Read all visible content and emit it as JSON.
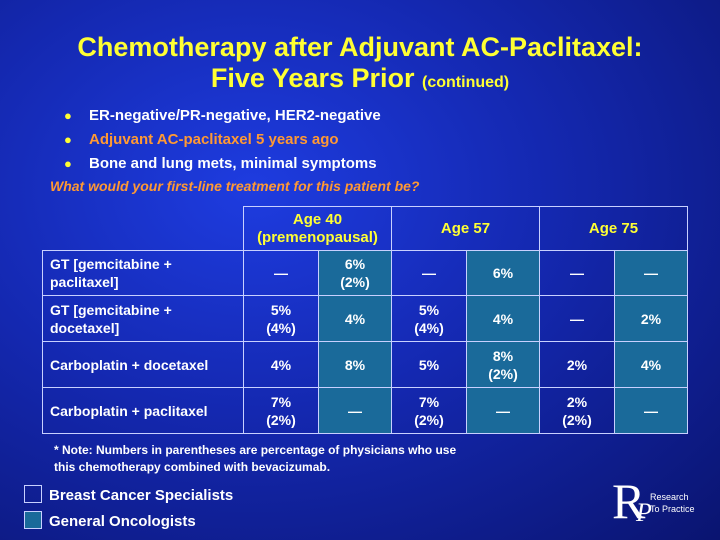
{
  "title": {
    "line1": "Chemotherapy after Adjuvant AC-Paclitaxel:",
    "line2": "Five Years Prior",
    "suffix": "(continued)"
  },
  "bullets": [
    {
      "text": "ER-negative/PR-negative, HER2-negative",
      "highlight": false
    },
    {
      "text": "Adjuvant AC-paclitaxel 5 years ago",
      "highlight": true
    },
    {
      "text": "Bone and lung mets, minimal symptoms",
      "highlight": false
    }
  ],
  "bullet_symbol": "●",
  "question": "What would your first-line treatment for this patient be?",
  "table": {
    "headers": [
      {
        "line1": "Age 40",
        "line2": "(premenopausal)"
      },
      {
        "line1": "Age 57",
        "line2": ""
      },
      {
        "line1": "Age 75",
        "line2": ""
      }
    ],
    "rows": [
      {
        "label_l1": "GT [gemcitabine +",
        "label_l2": "paclitaxel]",
        "cells": [
          [
            "—",
            ""
          ],
          [
            "6%",
            "(2%)"
          ],
          [
            "—",
            ""
          ],
          [
            "6%",
            ""
          ],
          [
            "—",
            ""
          ],
          [
            "—",
            ""
          ]
        ]
      },
      {
        "label_l1": "GT [gemcitabine +",
        "label_l2": "docetaxel]",
        "cells": [
          [
            "5%",
            "(4%)"
          ],
          [
            "4%",
            ""
          ],
          [
            "5%",
            "(4%)"
          ],
          [
            "4%",
            ""
          ],
          [
            "—",
            ""
          ],
          [
            "2%",
            ""
          ]
        ]
      },
      {
        "label_l1": "Carboplatin + docetaxel",
        "label_l2": "",
        "cells": [
          [
            "4%",
            ""
          ],
          [
            "8%",
            ""
          ],
          [
            "5%",
            ""
          ],
          [
            "8%",
            "(2%)"
          ],
          [
            "2%",
            ""
          ],
          [
            "4%",
            ""
          ]
        ]
      },
      {
        "label_l1": "Carboplatin + paclitaxel",
        "label_l2": "",
        "cells": [
          [
            "7%",
            "(2%)"
          ],
          [
            "—",
            ""
          ],
          [
            "7%",
            "(2%)"
          ],
          [
            "—",
            ""
          ],
          [
            "2%",
            "(2%)"
          ],
          [
            "—",
            ""
          ]
        ]
      }
    ]
  },
  "note": {
    "line1": "* Note: Numbers in parentheses are percentage of physicians who use",
    "line2": "this chemotherapy combined with bevacizumab."
  },
  "legend": {
    "specialists": "Breast Cancer Specialists",
    "oncologists": "General Oncologists",
    "specialist_color": "transparent",
    "oncologist_color": "#1a6a9a"
  },
  "logo": {
    "letter_r": "R",
    "letter_p": "P",
    "line1": "Research",
    "line2": "To Practice"
  },
  "colors": {
    "title": "#ffff33",
    "highlight": "#ff9933",
    "background": "#1428b0"
  }
}
